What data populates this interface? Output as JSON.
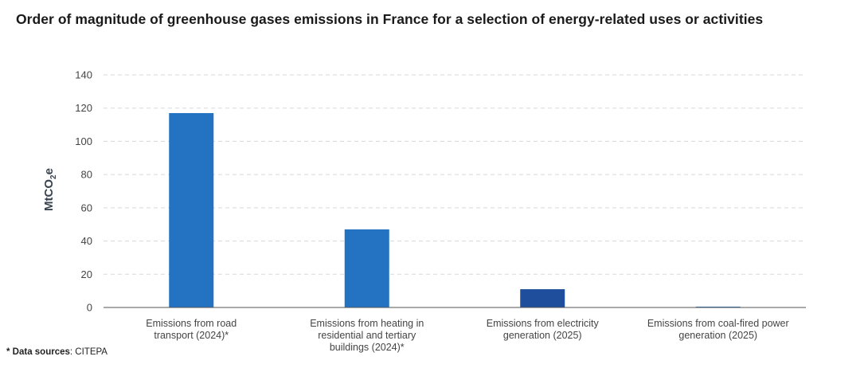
{
  "title": "Order of magnitude of greenhouse gases emissions in France for a selection of energy-related uses or activities",
  "footnote": {
    "prefix": "* Data sources",
    "text": ": CITEPA"
  },
  "colors": {
    "bar_default": "#2473c3",
    "bar_highlight": "#1f4f9c",
    "gridline": "#d8d8d8",
    "axis": "#555555"
  },
  "chart_data": {
    "type": "bar",
    "title": "Order of magnitude of greenhouse gases emissions in France for a selection of energy-related uses or activities",
    "ylabel": "MtCO₂e",
    "xlabel": "",
    "ylim": [
      0,
      140
    ],
    "yticks": [
      0,
      20,
      40,
      60,
      80,
      100,
      120,
      140
    ],
    "grid": true,
    "categories": [
      [
        "Emissions from road",
        "transport (2024)*"
      ],
      [
        "Emissions from heating in",
        "residential and tertiary",
        "buildings (2024)*"
      ],
      [
        "Emissions from electricity",
        "generation (2025)"
      ],
      [
        "Emissions from coal-fired power",
        "generation (2025)"
      ]
    ],
    "values": [
      117,
      47,
      11,
      0.5
    ],
    "bar_colors": [
      "#2473c3",
      "#2473c3",
      "#1f4f9c",
      "#2473c3"
    ]
  }
}
